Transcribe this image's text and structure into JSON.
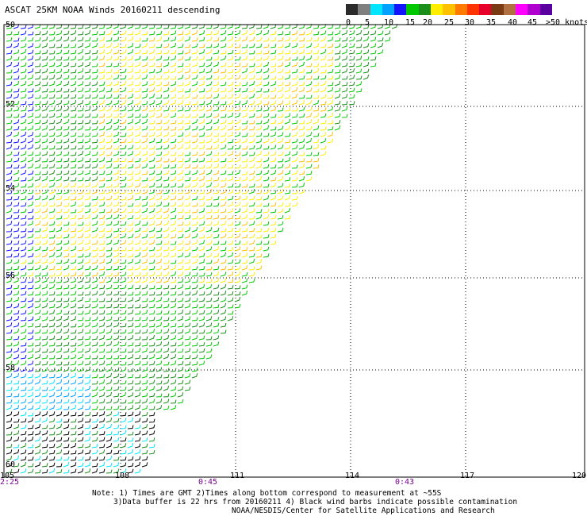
{
  "title": "ASCAT 25KM NOAA Winds 20160211 descending",
  "legend": {
    "labels": [
      "0",
      "5",
      "10",
      "15",
      "20",
      "25",
      "30",
      "35",
      "40",
      "45",
      ">50 knots"
    ],
    "colors": [
      "#2b2b2b",
      "#7f7f7f",
      "#00e5ff",
      "#00a2ff",
      "#1414ff",
      "#00c800",
      "#1a8f1a",
      "#ffee00",
      "#ffc000",
      "#ff7a00",
      "#ff3300",
      "#e6002a",
      "#7a3b14",
      "#b07040",
      "#ff00ff",
      "#b000d0",
      "#5a00a0"
    ]
  },
  "axes": {
    "x_labels": [
      "105",
      "108",
      "111",
      "114",
      "117",
      "120"
    ],
    "y_labels": [
      "50",
      "52",
      "54",
      "56",
      "58",
      "60"
    ]
  },
  "times": [
    "2:25",
    "0:45",
    "0:43"
  ],
  "notes": [
    "Note: 1) Times are GMT 2)Times along bottom correspond to measurement at ~55S",
    "3)Data buffer is 22 hrs from 20160211 4) Black wind barbs indicate possible contamination",
    "NOAA/NESDIS/Center for Satellite Applications and Research"
  ]
}
